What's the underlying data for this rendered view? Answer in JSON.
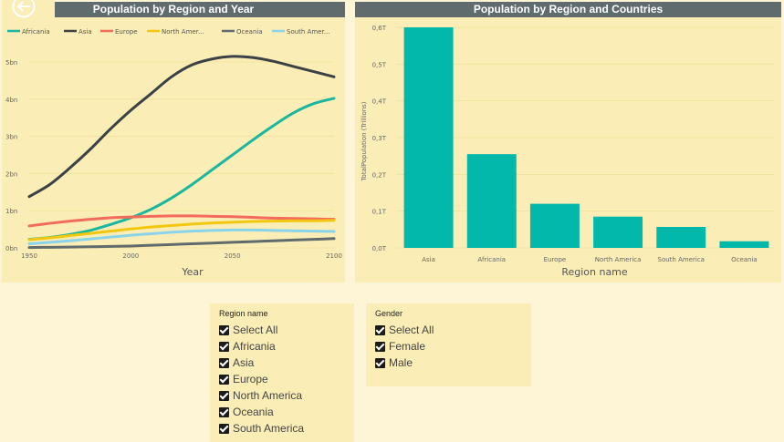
{
  "header": {
    "back_icon": "back-arrow-icon"
  },
  "line_panel": {
    "title": "Population by Region and Year"
  },
  "bar_panel": {
    "title": "Population by Region and Countries"
  },
  "chart_data": [
    {
      "type": "line",
      "title": "Population by Region and Year",
      "xlabel": "Year",
      "ylabel": "",
      "x": [
        1950,
        1960,
        1970,
        1980,
        1990,
        2000,
        2010,
        2020,
        2030,
        2040,
        2050,
        2060,
        2070,
        2080,
        2090,
        2100
      ],
      "xlim": [
        1950,
        2100
      ],
      "ylim": [
        0,
        5.5
      ],
      "xticks": [
        "1950",
        "2000",
        "2050",
        "2100"
      ],
      "yticks": [
        "0bn",
        "1bn",
        "2bn",
        "3bn",
        "4bn",
        "5bn"
      ],
      "legend_position": "top",
      "series": [
        {
          "name": "Africania",
          "color": "#19b79f",
          "values": [
            0.23,
            0.28,
            0.36,
            0.47,
            0.63,
            0.81,
            1.04,
            1.34,
            1.7,
            2.1,
            2.5,
            2.9,
            3.28,
            3.63,
            3.88,
            4.02
          ]
        },
        {
          "name": "Asia",
          "color": "#3a4246",
          "values": [
            1.38,
            1.7,
            2.15,
            2.65,
            3.2,
            3.7,
            4.15,
            4.6,
            4.92,
            5.08,
            5.15,
            5.12,
            5.02,
            4.88,
            4.74,
            4.6
          ]
        },
        {
          "name": "Europe",
          "color": "#f26b5b",
          "values": [
            0.59,
            0.66,
            0.72,
            0.77,
            0.81,
            0.83,
            0.85,
            0.86,
            0.86,
            0.85,
            0.84,
            0.82,
            0.8,
            0.79,
            0.78,
            0.77
          ]
        },
        {
          "name": "North America",
          "color": "#f2c80f",
          "values": [
            0.22,
            0.27,
            0.33,
            0.39,
            0.45,
            0.51,
            0.56,
            0.6,
            0.64,
            0.67,
            0.69,
            0.71,
            0.72,
            0.73,
            0.73,
            0.74
          ]
        },
        {
          "name": "Oceania",
          "color": "#5f6b6d",
          "values": [
            0.01,
            0.016,
            0.02,
            0.03,
            0.04,
            0.05,
            0.07,
            0.09,
            0.11,
            0.13,
            0.15,
            0.17,
            0.19,
            0.21,
            0.23,
            0.25
          ]
        },
        {
          "name": "South America",
          "color": "#8ad4eb",
          "values": [
            0.11,
            0.15,
            0.19,
            0.24,
            0.29,
            0.34,
            0.38,
            0.42,
            0.45,
            0.47,
            0.48,
            0.48,
            0.47,
            0.46,
            0.45,
            0.44
          ]
        }
      ],
      "legend_labels": [
        "Africania",
        "Asia",
        "Europe",
        "North Amer...",
        "Oceania",
        "South Amer..."
      ]
    },
    {
      "type": "bar",
      "title": "Population by Region and Countries",
      "xlabel": "Region name",
      "ylabel": "TotalPopulation (Trillions)",
      "categories": [
        "Asia",
        "Africania",
        "Europe",
        "North America",
        "South America",
        "Oceania"
      ],
      "values": [
        0.6,
        0.255,
        0.12,
        0.085,
        0.057,
        0.018
      ],
      "ylim": [
        0,
        0.6
      ],
      "yticks": [
        "0,0T",
        "0,1T",
        "0,2T",
        "0,3T",
        "0,4T",
        "0,5T",
        "0,6T"
      ],
      "color": "#01b8aa"
    }
  ],
  "slicer_region": {
    "header": "Region name",
    "items": [
      "Select All",
      "Africania",
      "Asia",
      "Europe",
      "North America",
      "Oceania",
      "South America"
    ]
  },
  "slicer_gender": {
    "header": "Gender",
    "items": [
      "Select All",
      "Female",
      "Male"
    ]
  }
}
